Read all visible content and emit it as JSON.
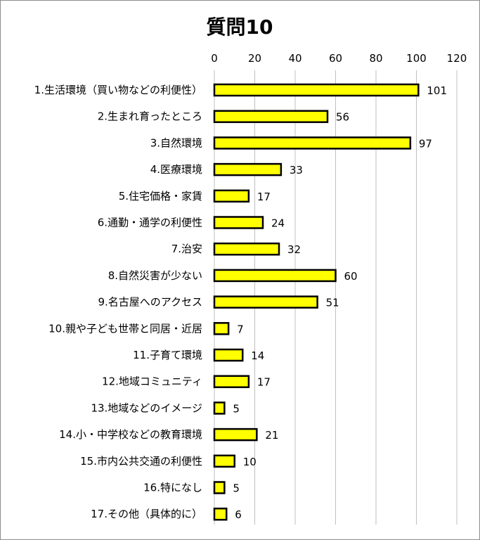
{
  "chart_data": {
    "type": "bar",
    "orientation": "horizontal",
    "title": "質問10",
    "xlim": [
      0,
      120
    ],
    "xticks": [
      0,
      20,
      40,
      60,
      80,
      100,
      120
    ],
    "categories": [
      "1.生活環境（買い物などの利便性）",
      "2.生まれ育ったところ",
      "3.自然環境",
      "4.医療環境",
      "5.住宅価格・家賃",
      "6.通勤・通学の利便性",
      "7.治安",
      "8.自然災害が少ない",
      "9.名古屋へのアクセス",
      "10.親や子ども世帯と同居・近居",
      "11.子育て環境",
      "12.地域コミュニティ",
      "13.地域などのイメージ",
      "14.小・中学校などの教育環境",
      "15.市内公共交通の利便性",
      "16.特になし",
      "17.その他（具体的に）"
    ],
    "values": [
      101,
      56,
      97,
      33,
      17,
      24,
      32,
      60,
      51,
      7,
      14,
      17,
      5,
      21,
      10,
      5,
      6
    ],
    "bar_color": "#ffff00",
    "bar_border": "#000000",
    "grid": true,
    "axis_position": "top",
    "data_labels": true
  }
}
